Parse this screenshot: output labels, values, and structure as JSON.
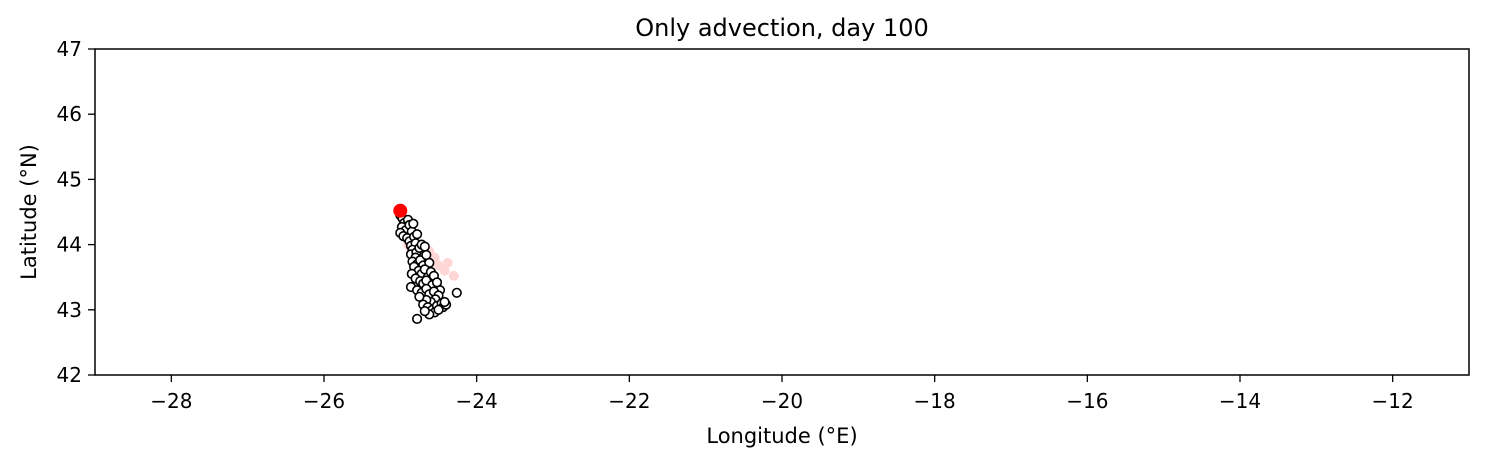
{
  "chart_data": {
    "type": "scatter",
    "title": "Only advection, day 100",
    "xlabel": "Longitude (°E)",
    "ylabel": "Latitude (°N)",
    "xlim": [
      -29,
      -11
    ],
    "ylim": [
      42,
      47
    ],
    "xticks": [
      -28,
      -26,
      -24,
      -22,
      -20,
      -18,
      -16,
      -14,
      -12
    ],
    "yticks": [
      42,
      43,
      44,
      45,
      46,
      47
    ],
    "xtick_labels": [
      "−28",
      "−26",
      "−24",
      "−22",
      "−20",
      "−18",
      "−16",
      "−14",
      "−12"
    ],
    "ytick_labels": [
      "42",
      "43",
      "44",
      "45",
      "46",
      "47"
    ],
    "grid": false,
    "colors": {
      "particle_edge": "#000000",
      "particle_fill": "#ffffff",
      "release_point": "#ff0000",
      "trail": "#ffd6d6"
    },
    "series": [
      {
        "marker": "open-circle",
        "points": [
          [
            -25.0,
            44.45
          ],
          [
            -24.97,
            44.4
          ],
          [
            -24.95,
            44.33
          ],
          [
            -24.98,
            44.27
          ],
          [
            -24.93,
            44.22
          ],
          [
            -25.0,
            44.18
          ],
          [
            -24.96,
            44.13
          ],
          [
            -24.9,
            44.38
          ],
          [
            -24.88,
            44.3
          ],
          [
            -24.85,
            44.2
          ],
          [
            -24.83,
            44.32
          ],
          [
            -24.91,
            44.1
          ],
          [
            -24.88,
            44.05
          ],
          [
            -24.86,
            43.98
          ],
          [
            -24.82,
            44.12
          ],
          [
            -24.78,
            44.16
          ],
          [
            -24.8,
            44.02
          ],
          [
            -24.84,
            43.92
          ],
          [
            -24.86,
            43.85
          ],
          [
            -24.79,
            43.88
          ],
          [
            -24.75,
            43.95
          ],
          [
            -24.72,
            44.0
          ],
          [
            -24.68,
            43.97
          ],
          [
            -24.8,
            43.8
          ],
          [
            -24.84,
            43.74
          ],
          [
            -24.78,
            43.7
          ],
          [
            -24.74,
            43.76
          ],
          [
            -24.7,
            43.68
          ],
          [
            -24.66,
            43.84
          ],
          [
            -24.62,
            43.72
          ],
          [
            -24.82,
            43.66
          ],
          [
            -24.76,
            43.6
          ],
          [
            -24.72,
            43.55
          ],
          [
            -24.68,
            43.62
          ],
          [
            -24.64,
            43.5
          ],
          [
            -24.85,
            43.55
          ],
          [
            -24.8,
            43.48
          ],
          [
            -24.74,
            43.44
          ],
          [
            -24.7,
            43.4
          ],
          [
            -24.66,
            43.45
          ],
          [
            -24.6,
            43.58
          ],
          [
            -24.56,
            43.52
          ],
          [
            -24.58,
            43.38
          ],
          [
            -24.52,
            43.42
          ],
          [
            -24.48,
            43.3
          ],
          [
            -24.86,
            43.35
          ],
          [
            -24.78,
            43.3
          ],
          [
            -24.72,
            43.26
          ],
          [
            -24.66,
            43.32
          ],
          [
            -24.62,
            43.24
          ],
          [
            -24.56,
            43.28
          ],
          [
            -24.5,
            43.22
          ],
          [
            -24.54,
            43.16
          ],
          [
            -24.6,
            43.12
          ],
          [
            -24.66,
            43.15
          ],
          [
            -24.7,
            43.08
          ],
          [
            -24.64,
            43.04
          ],
          [
            -24.58,
            43.0
          ],
          [
            -24.52,
            43.06
          ],
          [
            -24.46,
            43.1
          ],
          [
            -24.44,
            43.04
          ],
          [
            -24.4,
            43.08
          ],
          [
            -24.55,
            42.96
          ],
          [
            -24.62,
            42.93
          ],
          [
            -24.68,
            42.98
          ],
          [
            -24.75,
            43.2
          ],
          [
            -24.78,
            42.86
          ],
          [
            -24.26,
            43.26
          ],
          [
            -24.5,
            43.0
          ],
          [
            -24.42,
            43.12
          ]
        ]
      },
      {
        "marker": "filled-circle",
        "points": [
          [
            -25.0,
            44.52
          ]
        ]
      }
    ],
    "trail_points": [
      [
        -24.95,
        44.15
      ],
      [
        -24.9,
        44.0
      ],
      [
        -24.86,
        43.88
      ],
      [
        -24.72,
        43.96
      ],
      [
        -24.62,
        43.9
      ],
      [
        -24.55,
        43.8
      ],
      [
        -24.5,
        43.68
      ],
      [
        -24.42,
        43.6
      ],
      [
        -24.3,
        43.52
      ],
      [
        -24.38,
        43.72
      ],
      [
        -24.8,
        43.65
      ],
      [
        -24.76,
        43.4
      ]
    ]
  }
}
